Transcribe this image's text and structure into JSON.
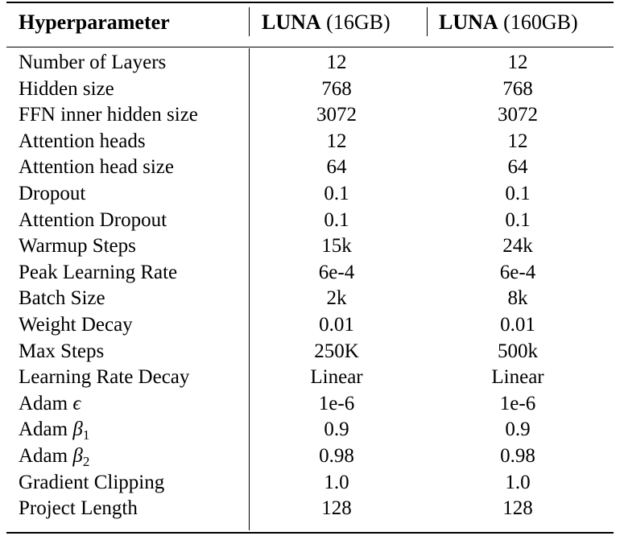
{
  "table": {
    "header": {
      "col0": "Hyperparameter",
      "col1_bold": "LUNA",
      "col1_rest": " (16GB)",
      "col2_bold": "LUNA",
      "col2_rest": " (160GB)"
    },
    "rows": [
      {
        "name": "Number of Layers",
        "v16": "12",
        "v160": "12"
      },
      {
        "name": "Hidden size",
        "v16": "768",
        "v160": "768"
      },
      {
        "name": "FFN inner hidden size",
        "v16": "3072",
        "v160": "3072"
      },
      {
        "name": "Attention heads",
        "v16": "12",
        "v160": "12"
      },
      {
        "name": "Attention head size",
        "v16": "64",
        "v160": "64"
      },
      {
        "name": "Dropout",
        "v16": "0.1",
        "v160": "0.1"
      },
      {
        "name": "Attention Dropout",
        "v16": "0.1",
        "v160": "0.1"
      },
      {
        "name": "Warmup Steps",
        "v16": "15k",
        "v160": "24k"
      },
      {
        "name": "Peak Learning Rate",
        "v16": "6e-4",
        "v160": "6e-4"
      },
      {
        "name": "Batch Size",
        "v16": "2k",
        "v160": "8k"
      },
      {
        "name": "Weight Decay",
        "v16": "0.01",
        "v160": "0.01"
      },
      {
        "name": "Max Steps",
        "v16": "250K",
        "v160": "500k"
      },
      {
        "name": "Learning Rate Decay",
        "v16": "Linear",
        "v160": "Linear"
      },
      {
        "name": "Adam",
        "sym": "ϵ",
        "sub": "",
        "v16": "1e-6",
        "v160": "1e-6"
      },
      {
        "name": "Adam",
        "sym": "β",
        "sub": "1",
        "v16": "0.9",
        "v160": "0.9"
      },
      {
        "name": "Adam",
        "sym": "β",
        "sub": "2",
        "v16": "0.98",
        "v160": "0.98"
      },
      {
        "name": "Gradient Clipping",
        "v16": "1.0",
        "v160": "1.0"
      },
      {
        "name": "Project Length",
        "v16": "128",
        "v160": "128"
      }
    ]
  }
}
